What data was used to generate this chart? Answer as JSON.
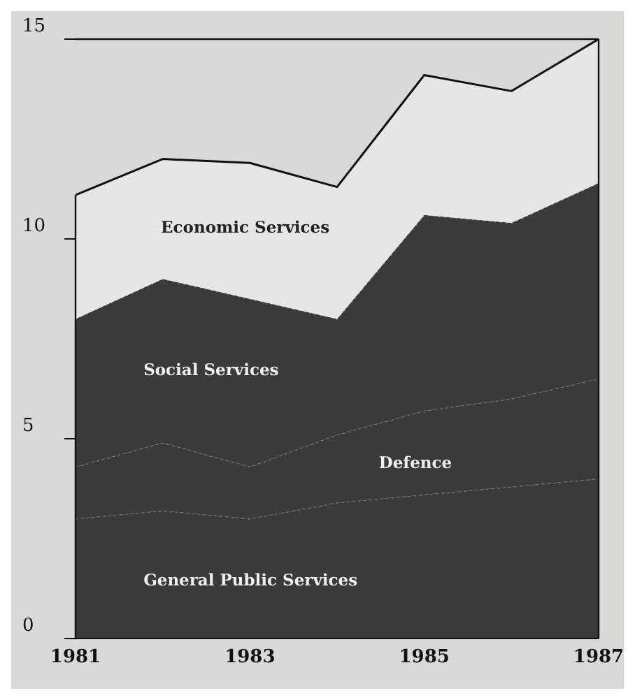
{
  "chart_data": {
    "type": "area",
    "stacked": true,
    "x": [
      1981,
      1982,
      1983,
      1984,
      1985,
      1986,
      1987
    ],
    "xlim": [
      1981,
      1987
    ],
    "xticks": [
      1981,
      1983,
      1985,
      1987
    ],
    "ylim": [
      0,
      15
    ],
    "yticks": [
      0,
      5,
      10,
      15
    ],
    "grid": false,
    "legend": false,
    "series": [
      {
        "name": "General Public Services",
        "color": "#3a3a3a",
        "line_style": "dotted",
        "values": [
          3.0,
          3.2,
          3.0,
          3.4,
          3.6,
          3.8,
          4.0
        ]
      },
      {
        "name": "Defence",
        "color": "#3a3a3a",
        "line_style": "dotted",
        "values": [
          1.3,
          1.7,
          1.3,
          1.7,
          2.1,
          2.2,
          2.5
        ]
      },
      {
        "name": "Social Services",
        "color": "#3a3a3a",
        "line_style": "dotted",
        "values": [
          3.7,
          4.1,
          4.2,
          2.9,
          4.9,
          4.4,
          4.9
        ]
      },
      {
        "name": "Economic Services",
        "color": "#e6e6e6",
        "line_style": "solid",
        "values": [
          3.1,
          3.0,
          3.4,
          3.3,
          3.5,
          3.3,
          3.6
        ]
      }
    ]
  }
}
